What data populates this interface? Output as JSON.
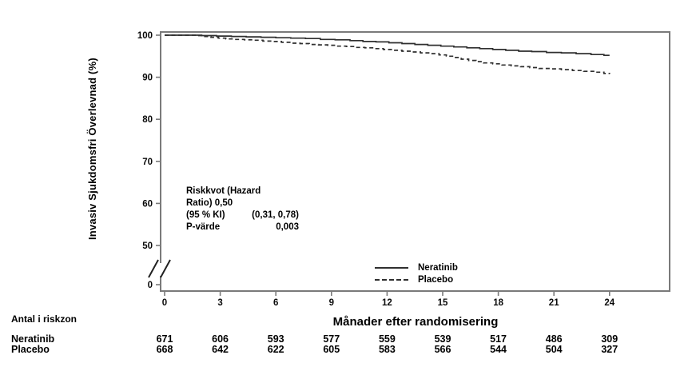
{
  "chart_data": {
    "type": "line",
    "subtype": "kaplan-meier-step",
    "title": "",
    "ylabel": "Invasiv Sjukdomsfri Överlevnad (%)",
    "xlabel": "Månader efter randomisering",
    "x_ticks": [
      "0",
      "3",
      "6",
      "9",
      "12",
      "15",
      "18",
      "21",
      "24"
    ],
    "x_tick_months": [
      0,
      3,
      6,
      9,
      12,
      15,
      18,
      21,
      24
    ],
    "y_ticks": [
      "100",
      "90",
      "80",
      "70",
      "60",
      "50"
    ],
    "y_tick_values": [
      100,
      90,
      80,
      70,
      60,
      50
    ],
    "y_zero_label": "0",
    "axis_break": true,
    "grid": false,
    "legend_position": "inside-bottom-center",
    "x_range": [
      0,
      24
    ],
    "y_range_shown": [
      50,
      100
    ],
    "colors": {
      "frame": "#7a7a7a",
      "curve": "#2f2f2f",
      "text": "#000000",
      "background": "#ffffff"
    },
    "series": [
      {
        "name": "Neratinib",
        "line_style": "solid",
        "color": "#2f2f2f",
        "points": [
          [
            0,
            100
          ],
          [
            1.5,
            100
          ],
          [
            2,
            99.9
          ],
          [
            2.8,
            99.8
          ],
          [
            3.6,
            99.7
          ],
          [
            4.4,
            99.6
          ],
          [
            5.2,
            99.5
          ],
          [
            6,
            99.4
          ],
          [
            6.8,
            99.3
          ],
          [
            7.6,
            99.2
          ],
          [
            8.4,
            99.0
          ],
          [
            9.2,
            98.9
          ],
          [
            10,
            98.7
          ],
          [
            10.7,
            98.5
          ],
          [
            11.4,
            98.4
          ],
          [
            12.1,
            98.2
          ],
          [
            12.8,
            98.0
          ],
          [
            13.5,
            97.8
          ],
          [
            14.2,
            97.6
          ],
          [
            14.9,
            97.4
          ],
          [
            15.6,
            97.2
          ],
          [
            16.3,
            97.0
          ],
          [
            17,
            96.8
          ],
          [
            17.7,
            96.6
          ],
          [
            18.4,
            96.4
          ],
          [
            19.1,
            96.2
          ],
          [
            19.8,
            96.1
          ],
          [
            20.6,
            95.9
          ],
          [
            21.4,
            95.8
          ],
          [
            22.2,
            95.6
          ],
          [
            23,
            95.4
          ],
          [
            23.7,
            95.2
          ],
          [
            24,
            95.2
          ]
        ]
      },
      {
        "name": "Placebo",
        "line_style": "dashed",
        "color": "#2f2f2f",
        "points": [
          [
            0,
            100
          ],
          [
            1.7,
            99.9
          ],
          [
            2.1,
            99.7
          ],
          [
            2.5,
            99.5
          ],
          [
            2.9,
            99.3
          ],
          [
            3.3,
            99.1
          ],
          [
            3.8,
            99.0
          ],
          [
            4.3,
            98.9
          ],
          [
            4.8,
            98.8
          ],
          [
            5.3,
            98.6
          ],
          [
            5.8,
            98.5
          ],
          [
            6.3,
            98.3
          ],
          [
            6.8,
            98.1
          ],
          [
            7.3,
            98.0
          ],
          [
            7.8,
            97.8
          ],
          [
            8.3,
            97.7
          ],
          [
            8.8,
            97.6
          ],
          [
            9.3,
            97.4
          ],
          [
            9.8,
            97.3
          ],
          [
            10.3,
            97.1
          ],
          [
            10.8,
            97.0
          ],
          [
            11.3,
            96.8
          ],
          [
            11.8,
            96.6
          ],
          [
            12.3,
            96.4
          ],
          [
            12.8,
            96.2
          ],
          [
            13.3,
            96.0
          ],
          [
            13.8,
            95.8
          ],
          [
            14.3,
            95.6
          ],
          [
            14.8,
            95.3
          ],
          [
            15.2,
            95.0
          ],
          [
            15.6,
            94.7
          ],
          [
            16,
            94.3
          ],
          [
            16.4,
            94.0
          ],
          [
            16.8,
            93.7
          ],
          [
            17.2,
            93.4
          ],
          [
            17.7,
            93.2
          ],
          [
            18.2,
            92.9
          ],
          [
            18.7,
            92.7
          ],
          [
            19.2,
            92.5
          ],
          [
            19.7,
            92.3
          ],
          [
            20.2,
            92.1
          ],
          [
            20.8,
            92.0
          ],
          [
            21.4,
            91.8
          ],
          [
            22,
            91.6
          ],
          [
            22.6,
            91.4
          ],
          [
            23.2,
            91.2
          ],
          [
            23.7,
            90.9
          ],
          [
            24,
            90.8
          ]
        ]
      }
    ],
    "annotation": {
      "lines": [
        "Riskkvot (Hazard",
        "Ratio) 0,50"
      ],
      "rows": [
        {
          "label": "(95 % KI)",
          "value": "(0,31, 0,78)"
        },
        {
          "label": "P-värde",
          "value": "0,003"
        }
      ]
    },
    "risk_table": {
      "title": "Antal i riskzon",
      "months": [
        0,
        3,
        6,
        9,
        12,
        15,
        18,
        21,
        24
      ],
      "rows": [
        {
          "name": "Neratinib",
          "values": [
            "671",
            "606",
            "593",
            "577",
            "559",
            "539",
            "517",
            "486",
            "309"
          ]
        },
        {
          "name": "Placebo",
          "values": [
            "668",
            "642",
            "622",
            "605",
            "583",
            "566",
            "544",
            "504",
            "327"
          ]
        }
      ]
    }
  }
}
